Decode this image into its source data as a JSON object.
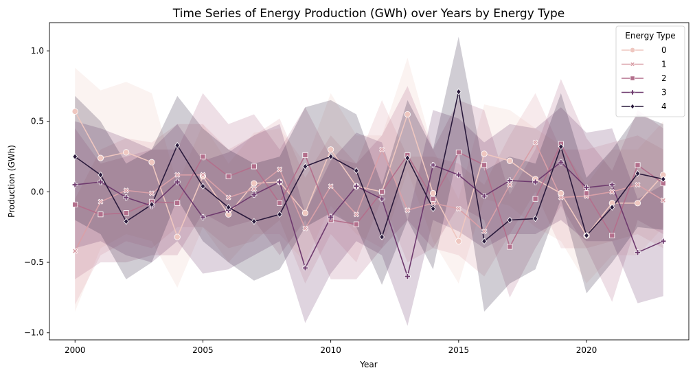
{
  "chart_data": {
    "type": "line",
    "title": "Time Series of Energy Production (GWh) over Years by Energy Type",
    "xlabel": "Year",
    "ylabel": "Production (GWh)",
    "xlim": [
      1999.0,
      2024.0
    ],
    "ylim": [
      -1.05,
      1.2
    ],
    "xticks": [
      2000,
      2005,
      2010,
      2015,
      2020
    ],
    "yticks": [
      -1.0,
      -0.5,
      0.0,
      0.5,
      1.0
    ],
    "xtick_labels": [
      "2000",
      "2005",
      "2010",
      "2015",
      "2020"
    ],
    "ytick_labels": [
      "−1.0",
      "−0.5",
      "0.0",
      "0.5",
      "1.0"
    ],
    "grid": false,
    "legend": {
      "title": "Energy Type",
      "placement": "top-right"
    },
    "x": [
      2000,
      2001,
      2002,
      2003,
      2004,
      2005,
      2006,
      2007,
      2008,
      2009,
      2010,
      2011,
      2012,
      2013,
      2014,
      2015,
      2016,
      2017,
      2018,
      2019,
      2020,
      2021,
      2022,
      2023
    ],
    "series": [
      {
        "name": "0",
        "color": "#efc7c0",
        "marker": "circle",
        "values": [
          0.57,
          0.24,
          0.28,
          0.21,
          -0.32,
          0.11,
          -0.16,
          0.06,
          0.07,
          -0.15,
          0.3,
          0.04,
          0.0,
          0.55,
          -0.01,
          -0.35,
          0.27,
          0.22,
          0.09,
          -0.01,
          -0.31,
          -0.08,
          -0.08,
          0.12
        ],
        "lower": [
          -0.85,
          -0.4,
          -0.3,
          -0.35,
          -0.68,
          -0.25,
          -0.5,
          -0.3,
          -0.3,
          -0.5,
          -0.1,
          -0.3,
          -0.4,
          0.15,
          -0.35,
          -0.65,
          -0.05,
          -0.1,
          -0.25,
          -0.35,
          -0.65,
          -0.45,
          -0.45,
          -0.25
        ],
        "upper": [
          0.88,
          0.72,
          0.78,
          0.7,
          0.05,
          0.48,
          0.2,
          0.42,
          0.45,
          0.2,
          0.7,
          0.4,
          0.4,
          0.95,
          0.3,
          -0.05,
          0.62,
          0.58,
          0.45,
          0.33,
          0.05,
          0.3,
          0.3,
          0.5
        ]
      },
      {
        "name": "1",
        "color": "#d9a0a8",
        "marker": "x",
        "values": [
          -0.42,
          -0.07,
          0.01,
          -0.01,
          0.12,
          0.12,
          -0.04,
          0.02,
          0.16,
          -0.26,
          0.04,
          -0.16,
          0.3,
          -0.13,
          -0.08,
          -0.12,
          -0.28,
          0.05,
          0.35,
          -0.04,
          -0.03,
          0.0,
          0.05,
          -0.06
        ],
        "lower": [
          -0.8,
          -0.45,
          -0.35,
          -0.4,
          -0.25,
          -0.25,
          -0.4,
          -0.35,
          -0.2,
          -0.65,
          -0.3,
          -0.5,
          -0.05,
          -0.5,
          -0.4,
          -0.45,
          -0.6,
          -0.3,
          0.0,
          -0.4,
          -0.4,
          -0.35,
          -0.3,
          -0.4
        ],
        "upper": [
          -0.05,
          0.3,
          0.38,
          0.35,
          0.48,
          0.48,
          0.3,
          0.4,
          0.52,
          0.1,
          0.4,
          0.2,
          0.65,
          0.25,
          0.25,
          0.2,
          0.05,
          0.4,
          0.7,
          0.3,
          0.3,
          0.35,
          0.4,
          0.3
        ]
      },
      {
        "name": "2",
        "color": "#b36f8c",
        "marker": "square",
        "values": [
          -0.09,
          -0.16,
          -0.15,
          -0.07,
          -0.08,
          0.25,
          0.11,
          0.18,
          -0.08,
          0.26,
          -0.2,
          -0.23,
          0.0,
          0.26,
          -0.05,
          0.28,
          0.19,
          -0.39,
          -0.05,
          0.34,
          -0.01,
          -0.31,
          0.19,
          0.06
        ],
        "lower": [
          -0.62,
          -0.5,
          -0.5,
          -0.45,
          -0.45,
          -0.15,
          -0.25,
          -0.2,
          -0.45,
          -0.2,
          -0.62,
          -0.62,
          -0.4,
          -0.2,
          -0.4,
          -0.1,
          -0.2,
          -0.75,
          -0.4,
          -0.1,
          -0.4,
          -0.78,
          -0.2,
          -0.3
        ],
        "upper": [
          0.45,
          0.2,
          0.25,
          0.3,
          0.3,
          0.7,
          0.48,
          0.55,
          0.3,
          0.6,
          0.25,
          0.2,
          0.4,
          0.75,
          0.3,
          0.65,
          0.58,
          -0.02,
          0.3,
          0.8,
          0.38,
          0.15,
          0.58,
          0.45
        ]
      },
      {
        "name": "3",
        "color": "#6e3a6e",
        "marker": "plus",
        "values": [
          0.05,
          0.07,
          -0.04,
          -0.1,
          0.07,
          -0.18,
          -0.13,
          -0.02,
          0.07,
          -0.54,
          -0.18,
          0.04,
          -0.05,
          -0.6,
          0.19,
          0.12,
          -0.03,
          0.08,
          0.07,
          0.21,
          0.03,
          0.05,
          -0.43,
          -0.35
        ],
        "lower": [
          -0.4,
          -0.35,
          -0.45,
          -0.5,
          -0.35,
          -0.58,
          -0.55,
          -0.45,
          -0.35,
          -0.93,
          -0.58,
          -0.35,
          -0.45,
          -0.95,
          -0.2,
          -0.28,
          -0.4,
          -0.3,
          -0.3,
          -0.2,
          -0.35,
          -0.35,
          -0.79,
          -0.74
        ],
        "upper": [
          0.5,
          0.45,
          0.38,
          0.3,
          0.48,
          0.22,
          0.28,
          0.4,
          0.48,
          -0.15,
          0.22,
          0.42,
          0.35,
          -0.2,
          0.58,
          0.52,
          0.35,
          0.48,
          0.45,
          0.6,
          0.42,
          0.45,
          -0.05,
          0.05
        ]
      },
      {
        "name": "4",
        "color": "#2a1a3c",
        "marker": "diamond",
        "values": [
          0.25,
          0.12,
          -0.21,
          -0.09,
          0.33,
          0.04,
          -0.11,
          -0.21,
          -0.16,
          0.18,
          0.25,
          0.15,
          -0.32,
          0.24,
          -0.12,
          0.71,
          -0.35,
          -0.2,
          -0.19,
          0.32,
          -0.31,
          -0.11,
          0.13,
          0.09
        ],
        "lower": [
          -0.2,
          -0.3,
          -0.62,
          -0.5,
          -0.05,
          -0.35,
          -0.5,
          -0.63,
          -0.55,
          -0.25,
          -0.15,
          -0.25,
          -0.66,
          -0.2,
          -0.55,
          0.3,
          -0.85,
          -0.65,
          -0.55,
          -0.05,
          -0.72,
          -0.5,
          -0.25,
          -0.27
        ],
        "upper": [
          0.68,
          0.5,
          0.2,
          0.3,
          0.68,
          0.45,
          0.3,
          0.2,
          0.25,
          0.6,
          0.65,
          0.55,
          0.05,
          0.65,
          0.3,
          1.1,
          0.15,
          0.25,
          0.2,
          0.7,
          0.1,
          0.3,
          0.55,
          0.48
        ]
      }
    ]
  }
}
